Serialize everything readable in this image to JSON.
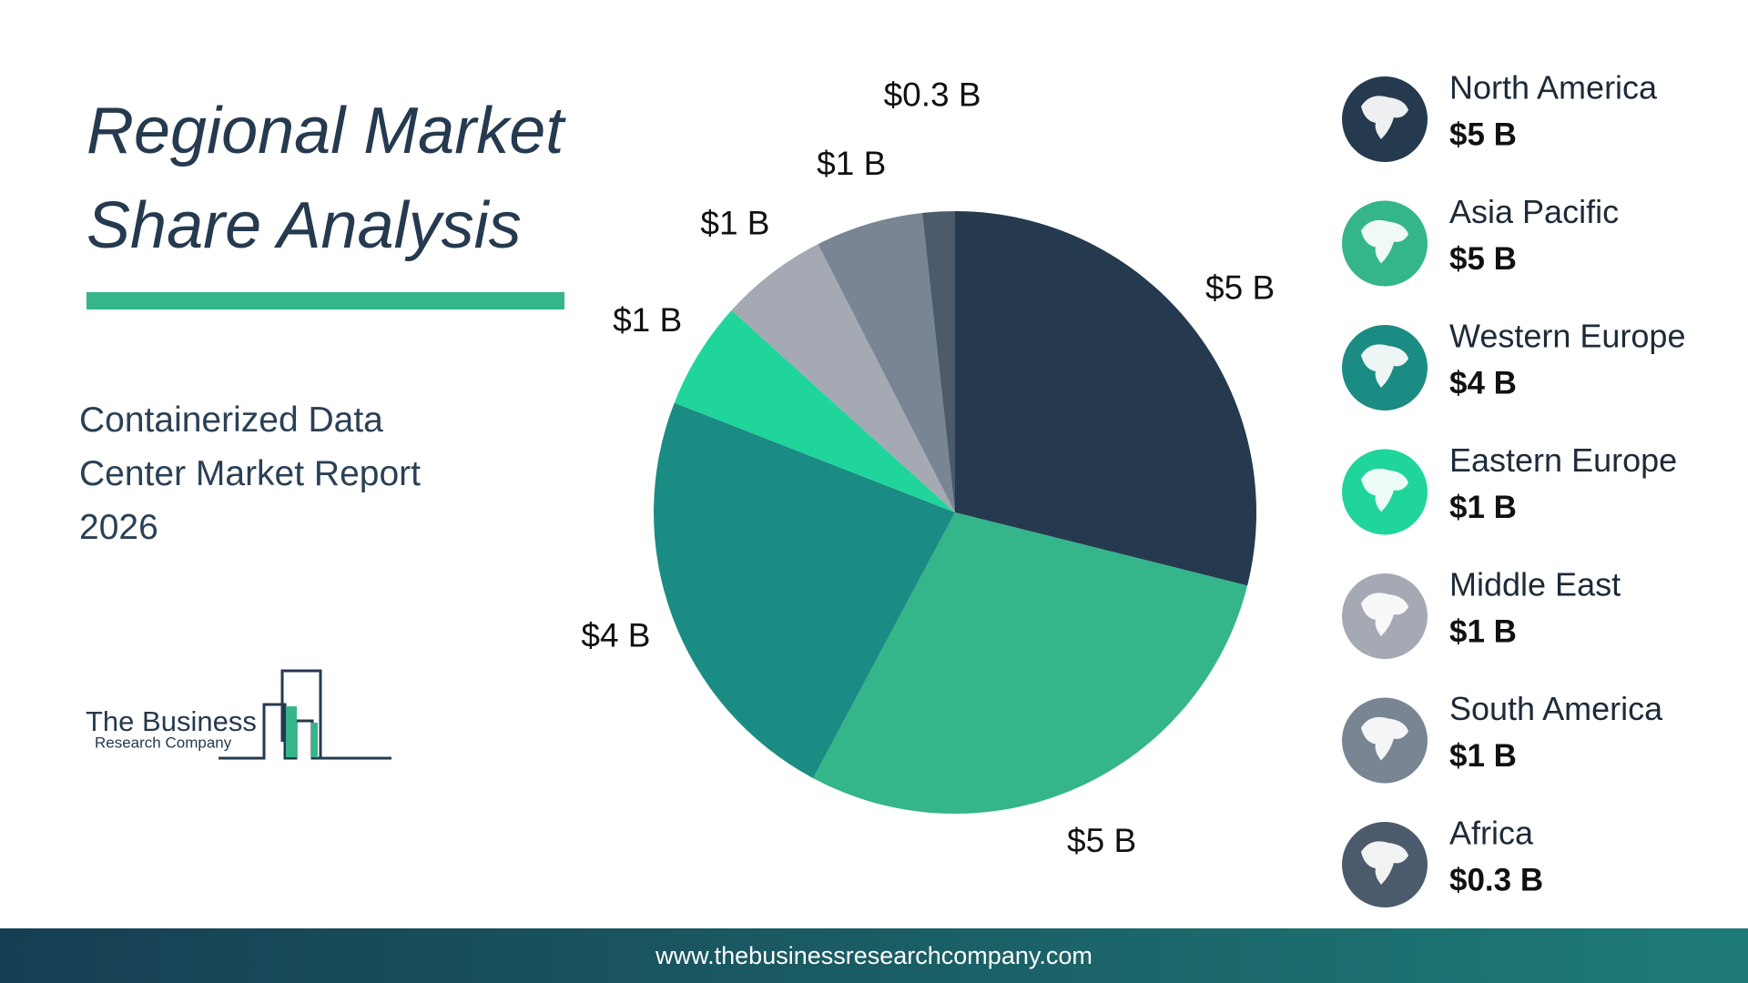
{
  "chart_data": {
    "type": "pie",
    "title": "Regional Market Share Analysis",
    "subtitle": "Containerized Data Center Market Report 2026",
    "categories": [
      "North America",
      "Asia Pacific",
      "Western Europe",
      "Eastern Europe",
      "Middle East",
      "South America",
      "Africa"
    ],
    "values": [
      5,
      5,
      4,
      1,
      1,
      1,
      0.3
    ],
    "value_labels": [
      "$5 B",
      "$5 B",
      "$4 B",
      "$1 B",
      "$1 B",
      "$1 B",
      "$0.3 B"
    ],
    "colors": [
      "#253a4f",
      "#34b58a",
      "#1b8c84",
      "#20d59b",
      "#a4a9b4",
      "#798593",
      "#4b5b6c"
    ],
    "legend": "right"
  },
  "logo": {
    "line1": "The Business",
    "line2": "Research Company"
  },
  "footer": "www.thebusinessresearchcompany.com"
}
